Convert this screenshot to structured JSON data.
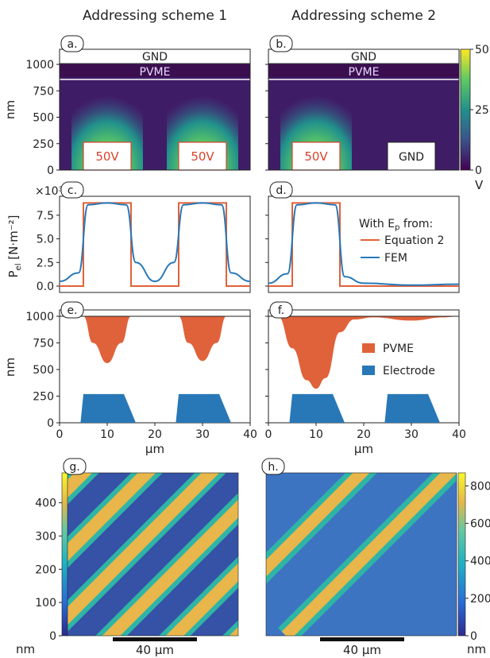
{
  "columns": {
    "left_title": "Addressing scheme 1",
    "right_title": "Addressing scheme 2"
  },
  "panels": {
    "a": "a.",
    "b": "b.",
    "c": "c.",
    "d": "d.",
    "e": "e.",
    "f": "f.",
    "g": "g.",
    "h": "h."
  },
  "colorbar_top": {
    "ticks": [
      "50",
      "25",
      "0"
    ],
    "unit": "V"
  },
  "top_row": {
    "y_ticks": [
      "1000",
      "750",
      "500",
      "250",
      "0"
    ],
    "ylabel": "nm",
    "gnd_label": "GND",
    "pvme_label": "PVME",
    "electrode_voltage": "50V",
    "electrode_gnd": "GND"
  },
  "mid_row": {
    "exponent": "×10³",
    "y_ticks": [
      "7.5",
      "5.0",
      "2.5",
      "0.0"
    ],
    "ylabel_main": "P",
    "ylabel_sub": "el",
    "ylabel_units": " [N·m⁻²]",
    "legend_title": "With E",
    "legend_title_sub": "p",
    "legend_title_end": " from:",
    "legend_eq": "Equation 2",
    "legend_fem": "FEM",
    "color_eq": "#e0623a",
    "color_fem": "#2878b8"
  },
  "low_row": {
    "y_ticks": [
      "1000",
      "750",
      "500",
      "250",
      "0"
    ],
    "ylabel": "nm",
    "x_ticks": [
      "0",
      "10",
      "20",
      "30",
      "40"
    ],
    "xlabel": "µm",
    "legend_pvme": "PVME",
    "legend_electrode": "Electrode",
    "color_pvme": "#e0623a",
    "color_electrode": "#2878b8"
  },
  "afm": {
    "left_ticks": [
      "400",
      "300",
      "200",
      "100",
      "0"
    ],
    "right_ticks": [
      "800",
      "600",
      "400",
      "200",
      "0"
    ],
    "unit": "nm",
    "scalebar": "40 µm"
  },
  "chart_data": [
    {
      "type": "heatmap",
      "panel": "a",
      "xrange_um": [
        0,
        40
      ],
      "ylim": [
        0,
        1000
      ],
      "ylabel": "nm",
      "colorbar_range_V": [
        0,
        50
      ],
      "electrodes": [
        {
          "x": [
            5,
            15
          ],
          "label": "50V"
        },
        {
          "x": [
            25,
            35
          ],
          "label": "50V"
        }
      ]
    },
    {
      "type": "heatmap",
      "panel": "b",
      "xrange_um": [
        0,
        40
      ],
      "ylim": [
        0,
        1000
      ],
      "colorbar_range_V": [
        0,
        50
      ],
      "electrodes": [
        {
          "x": [
            5,
            15
          ],
          "label": "50V"
        },
        {
          "x": [
            25,
            35
          ],
          "label": "GND"
        }
      ]
    },
    {
      "type": "line",
      "panel": "c",
      "xlim": [
        0,
        40
      ],
      "ylim": [
        0,
        9000
      ],
      "series": [
        {
          "name": "Equation 2",
          "x": [
            0,
            5,
            5,
            15,
            15,
            25,
            25,
            35,
            35,
            40
          ],
          "y": [
            0,
            0,
            8800,
            8800,
            0,
            0,
            8800,
            8800,
            0,
            0
          ]
        },
        {
          "name": "FEM",
          "x": [
            0,
            4,
            6,
            10,
            14,
            16,
            20,
            24,
            26,
            30,
            34,
            36,
            40
          ],
          "y": [
            500,
            1400,
            8600,
            8800,
            8600,
            2500,
            500,
            2500,
            8600,
            8800,
            8600,
            1400,
            500
          ]
        }
      ]
    },
    {
      "type": "line",
      "panel": "d",
      "xlim": [
        0,
        40
      ],
      "ylim": [
        0,
        9000
      ],
      "series": [
        {
          "name": "Equation 2",
          "x": [
            0,
            5,
            5,
            15,
            15,
            40
          ],
          "y": [
            0,
            0,
            8800,
            8800,
            0,
            0
          ]
        },
        {
          "name": "FEM",
          "x": [
            0,
            4,
            6,
            10,
            14,
            16,
            20,
            30,
            40
          ],
          "y": [
            300,
            1300,
            8600,
            8800,
            8600,
            1000,
            300,
            100,
            200
          ]
        }
      ]
    },
    {
      "type": "area",
      "panel": "e",
      "xlim": [
        0,
        40
      ],
      "ylim": [
        0,
        1000
      ],
      "pvme_x": [
        5,
        7,
        10,
        13,
        15,
        25,
        27,
        30,
        33,
        35
      ],
      "pvme_y": [
        1000,
        750,
        560,
        750,
        1000,
        1000,
        750,
        580,
        750,
        1000
      ],
      "electrode_x": [
        [
          5,
          15
        ],
        [
          25,
          35
        ]
      ],
      "electrode_height_nm": 270
    },
    {
      "type": "area",
      "panel": "f",
      "xlim": [
        0,
        40
      ],
      "ylim": [
        0,
        1000
      ],
      "pvme_x": [
        2,
        5,
        8,
        10,
        12,
        15,
        18,
        22,
        30,
        37
      ],
      "pvme_y": [
        1000,
        700,
        400,
        320,
        420,
        850,
        970,
        990,
        960,
        990
      ],
      "electrode_x": [
        [
          5,
          15
        ],
        [
          25,
          35
        ]
      ],
      "electrode_height_nm": 270
    }
  ]
}
